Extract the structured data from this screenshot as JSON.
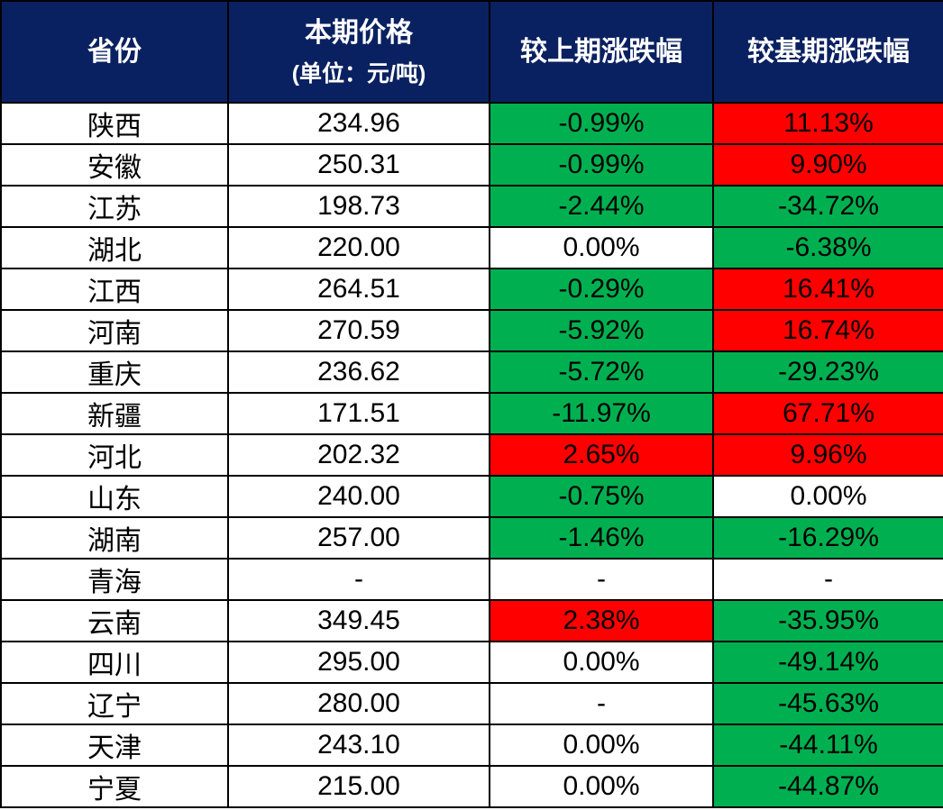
{
  "colors": {
    "header_bg": "#0A2161",
    "header_text": "#FFFFFF",
    "border": "#000000",
    "red": "#FE0000",
    "green": "#00B050",
    "white": "#FFFFFF"
  },
  "chart_data": {
    "type": "table",
    "header": {
      "province": "省份",
      "price_line1": "本期价格",
      "price_line2": "(单位：元/吨)",
      "prev": "较上期涨跌幅",
      "base": "较基期涨跌幅"
    },
    "rows": [
      {
        "province": "陕西",
        "price": "234.96",
        "prev_change": "-0.99%",
        "prev_color": "green",
        "base_change": "11.13%",
        "base_color": "red"
      },
      {
        "province": "安徽",
        "price": "250.31",
        "prev_change": "-0.99%",
        "prev_color": "green",
        "base_change": "9.90%",
        "base_color": "red"
      },
      {
        "province": "江苏",
        "price": "198.73",
        "prev_change": "-2.44%",
        "prev_color": "green",
        "base_change": "-34.72%",
        "base_color": "green"
      },
      {
        "province": "湖北",
        "price": "220.00",
        "prev_change": "0.00%",
        "prev_color": "white",
        "base_change": "-6.38%",
        "base_color": "green"
      },
      {
        "province": "江西",
        "price": "264.51",
        "prev_change": "-0.29%",
        "prev_color": "green",
        "base_change": "16.41%",
        "base_color": "red"
      },
      {
        "province": "河南",
        "price": "270.59",
        "prev_change": "-5.92%",
        "prev_color": "green",
        "base_change": "16.74%",
        "base_color": "red"
      },
      {
        "province": "重庆",
        "price": "236.62",
        "prev_change": "-5.72%",
        "prev_color": "green",
        "base_change": "-29.23%",
        "base_color": "green"
      },
      {
        "province": "新疆",
        "price": "171.51",
        "prev_change": "-11.97%",
        "prev_color": "green",
        "base_change": "67.71%",
        "base_color": "red"
      },
      {
        "province": "河北",
        "price": "202.32",
        "prev_change": "2.65%",
        "prev_color": "red",
        "base_change": "9.96%",
        "base_color": "red"
      },
      {
        "province": "山东",
        "price": "240.00",
        "prev_change": "-0.75%",
        "prev_color": "green",
        "base_change": "0.00%",
        "base_color": "white"
      },
      {
        "province": "湖南",
        "price": "257.00",
        "prev_change": "-1.46%",
        "prev_color": "green",
        "base_change": "-16.29%",
        "base_color": "green"
      },
      {
        "province": "青海",
        "price": "-",
        "prev_change": "-",
        "prev_color": "white",
        "base_change": "-",
        "base_color": "white"
      },
      {
        "province": "云南",
        "price": "349.45",
        "prev_change": "2.38%",
        "prev_color": "red",
        "base_change": "-35.95%",
        "base_color": "green"
      },
      {
        "province": "四川",
        "price": "295.00",
        "prev_change": "0.00%",
        "prev_color": "white",
        "base_change": "-49.14%",
        "base_color": "green"
      },
      {
        "province": "辽宁",
        "price": "280.00",
        "prev_change": "-",
        "prev_color": "white",
        "base_change": "-45.63%",
        "base_color": "green"
      },
      {
        "province": "天津",
        "price": "243.10",
        "prev_change": "0.00%",
        "prev_color": "white",
        "base_change": "-44.11%",
        "base_color": "green"
      },
      {
        "province": "宁夏",
        "price": "215.00",
        "prev_change": "0.00%",
        "prev_color": "white",
        "base_change": "-44.87%",
        "base_color": "green"
      }
    ]
  }
}
